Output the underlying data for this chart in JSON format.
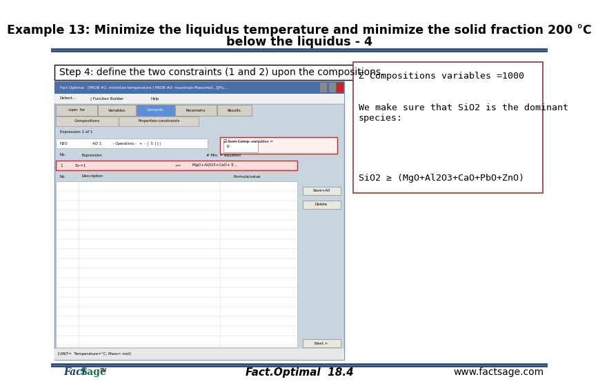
{
  "title_line1": "Example 13: Minimize the liquidus temperature and minimize the solid fraction 200 °C",
  "title_line2": "below the liquidus - 4",
  "title_fontsize": 12.5,
  "step_text": "Step 4: define the two constraints (1 and 2) upon the compositions.",
  "step_fontsize": 10,
  "annotation1": "Σ Compositions variables =1000",
  "annotation2": "We make sure that SiO2 is the dominant\nspecies:",
  "annotation3": "SiO2 ≥ (MgO+Al2O3+CaO+PbO+ZnO)",
  "annotation_fontsize": 9.5,
  "footer_center": "Fact.Optimal  18.4",
  "footer_right": "www.factsage.com",
  "footer_fontsize": 10,
  "bg_color": "#ffffff",
  "header_line_color": "#1a3a6b",
  "step_box_color": "#000000",
  "annotation_box_color": "#993333",
  "screenshot_bg": "#c8d4de",
  "dialog_title_color": "#4a6ea8",
  "tab_selected_color": "#5b8dd9",
  "tab_normal_color": "#d4d0c8"
}
